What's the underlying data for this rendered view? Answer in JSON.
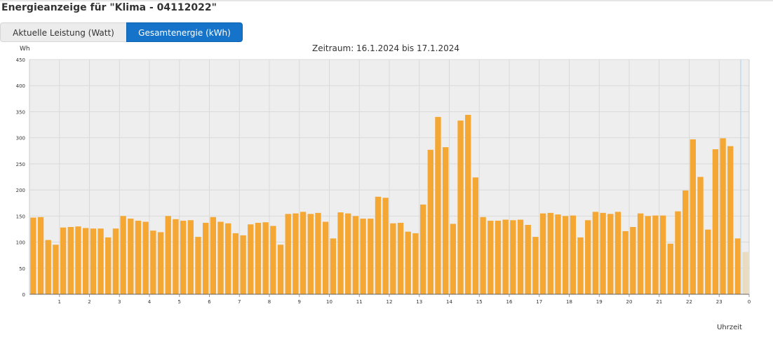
{
  "page": {
    "title": "Energieanzeige für \"Klima - 04112022\""
  },
  "tabs": [
    {
      "label": "Aktuelle Leistung (Watt)",
      "active": false
    },
    {
      "label": "Gesamtenergie (kWh)",
      "active": true
    }
  ],
  "colors": {
    "bar": "#f5a733",
    "bar_last": "#eadcc0",
    "plot_background": "#eeeeee",
    "grid": "#d9d9d9",
    "tab_active": "#1573c9",
    "tab_inactive": "#ececec",
    "current_time_line": "#b9d4ee"
  },
  "chart_data": {
    "type": "bar",
    "title": "Zeitraum: 16.1.2024 bis 17.1.2024",
    "ylabel": "Wh",
    "xlabel": "Uhrzeit",
    "ylim": [
      0,
      450
    ],
    "yticks": [
      0,
      50,
      100,
      150,
      200,
      250,
      300,
      350,
      400,
      450
    ],
    "xlim": [
      0,
      24
    ],
    "xticks": [
      1,
      2,
      3,
      4,
      5,
      6,
      7,
      8,
      9,
      10,
      11,
      12,
      13,
      14,
      15,
      16,
      17,
      18,
      19,
      20,
      21,
      22,
      23,
      24
    ],
    "xtick_labels": [
      "1",
      "2",
      "3",
      "4",
      "5",
      "6",
      "7",
      "8",
      "9",
      "10",
      "11",
      "12",
      "13",
      "14",
      "15",
      "16",
      "17",
      "18",
      "19",
      "20",
      "21",
      "22",
      "23",
      "0"
    ],
    "interval_minutes": 15,
    "grid": true,
    "values": [
      147,
      148,
      104,
      95,
      128,
      129,
      130,
      127,
      126,
      126,
      109,
      126,
      150,
      145,
      141,
      139,
      122,
      119,
      150,
      144,
      141,
      142,
      110,
      137,
      148,
      139,
      136,
      117,
      113,
      134,
      137,
      138,
      131,
      95,
      154,
      155,
      158,
      154,
      156,
      139,
      107,
      157,
      155,
      150,
      145,
      145,
      187,
      185,
      136,
      137,
      120,
      117,
      172,
      277,
      340,
      282,
      135,
      333,
      344,
      224,
      148,
      141,
      141,
      143,
      142,
      143,
      133,
      110,
      155,
      156,
      153,
      150,
      151,
      109,
      142,
      158,
      156,
      154,
      158,
      121,
      129,
      155,
      150,
      151,
      151,
      97,
      159,
      199,
      297,
      225,
      124,
      278,
      299,
      284,
      107,
      81
    ]
  }
}
